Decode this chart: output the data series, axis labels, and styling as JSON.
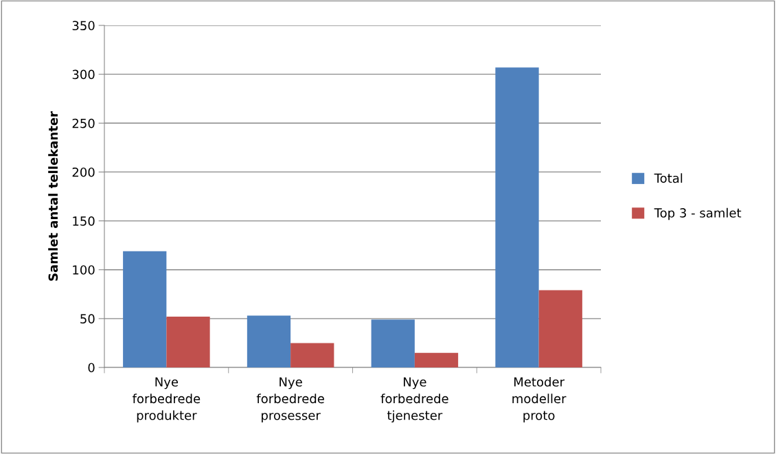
{
  "chart_data": {
    "type": "bar",
    "ylabel": "Samlet antal tellekanter",
    "categories": [
      "Nye\nforbedrede\nprodukter",
      "Nye\nforbedrede\nprosesser",
      "Nye\nforbedrede\ntjenester",
      "Metoder\nmodeller\nproto"
    ],
    "series": [
      {
        "name": "Total",
        "color": "#4f81bd",
        "values": [
          119,
          53,
          49,
          307
        ]
      },
      {
        "name": "Top 3 - samlet",
        "color": "#c0504d",
        "values": [
          52,
          25,
          15,
          79
        ]
      }
    ],
    "ylim": [
      0,
      350
    ],
    "yticks": [
      0,
      50,
      100,
      150,
      200,
      250,
      300,
      350
    ],
    "grid": "y",
    "legend": "right"
  }
}
